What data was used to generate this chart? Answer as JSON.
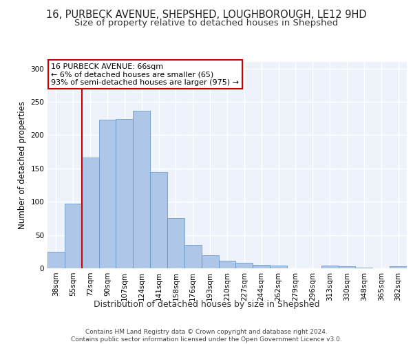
{
  "title1": "16, PURBECK AVENUE, SHEPSHED, LOUGHBOROUGH, LE12 9HD",
  "title2": "Size of property relative to detached houses in Shepshed",
  "xlabel": "Distribution of detached houses by size in Shepshed",
  "ylabel": "Number of detached properties",
  "categories": [
    "38sqm",
    "55sqm",
    "72sqm",
    "90sqm",
    "107sqm",
    "124sqm",
    "141sqm",
    "158sqm",
    "176sqm",
    "193sqm",
    "210sqm",
    "227sqm",
    "244sqm",
    "262sqm",
    "279sqm",
    "296sqm",
    "313sqm",
    "330sqm",
    "348sqm",
    "365sqm",
    "382sqm"
  ],
  "values": [
    25,
    97,
    166,
    223,
    224,
    237,
    145,
    75,
    35,
    20,
    11,
    8,
    5,
    4,
    0,
    0,
    4,
    3,
    1,
    0,
    3
  ],
  "bar_color": "#aec6e8",
  "bar_edge_color": "#5a8fc2",
  "red_line_x": 1.5,
  "annotation_text": "16 PURBECK AVENUE: 66sqm\n← 6% of detached houses are smaller (65)\n93% of semi-detached houses are larger (975) →",
  "annotation_box_color": "#ffffff",
  "annotation_box_edge": "#cc0000",
  "ylim": [
    0,
    310
  ],
  "yticks": [
    0,
    50,
    100,
    150,
    200,
    250,
    300
  ],
  "footer": "Contains HM Land Registry data © Crown copyright and database right 2024.\nContains public sector information licensed under the Open Government Licence v3.0.",
  "bg_color": "#eef2fa",
  "grid_color": "#ffffff",
  "title1_fontsize": 10.5,
  "title2_fontsize": 9.5,
  "xlabel_fontsize": 9,
  "ylabel_fontsize": 8.5,
  "tick_fontsize": 7.5,
  "annotation_fontsize": 8,
  "footer_fontsize": 6.5
}
